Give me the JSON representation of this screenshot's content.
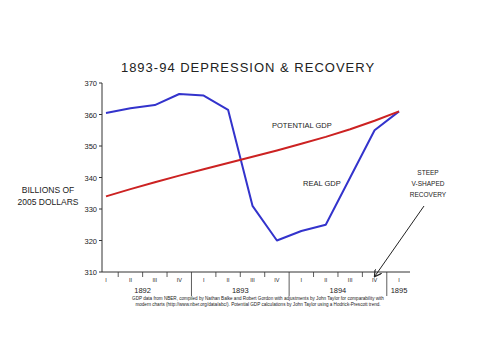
{
  "chart_data": {
    "type": "line",
    "title": "1893-94 DEPRESSION & RECOVERY",
    "y_label": "BILLIONS OF 2005 DOLLARS",
    "categories": [
      "I",
      "II",
      "III",
      "IV",
      "I",
      "II",
      "III",
      "IV",
      "I",
      "II",
      "III",
      "IV",
      "I"
    ],
    "year_labels": [
      "1892",
      "1893",
      "1894",
      "1895"
    ],
    "series": [
      {
        "name": "REAL GDP",
        "color": "#3333cc",
        "values": [
          360.5,
          362,
          363,
          366.5,
          366,
          361.5,
          331,
          320,
          323,
          325,
          340,
          355,
          361
        ]
      },
      {
        "name": "POTENTIAL GDP",
        "color": "#cc2222",
        "values": [
          334,
          336.3,
          338.5,
          340.6,
          342.6,
          344.6,
          346.6,
          348.6,
          350.7,
          352.9,
          355.3,
          358,
          361
        ]
      }
    ],
    "annotations": [
      "POTENTIAL GDP",
      "REAL GDP",
      "STEEP V-SHAPED RECOVERY"
    ],
    "source": "GDP data from NBER, compiled by Nathan Balke and Robert Gordon with adjustments by John Taylor for comparability with modern charts (http://www.nber.org/data/abc/). Potential GDP calculations by John Taylor using a Hodrick-Prescott trend.",
    "ylim": [
      310,
      370
    ],
    "yticks": [
      310,
      320,
      330,
      340,
      350,
      360,
      370
    ],
    "grid": false
  }
}
